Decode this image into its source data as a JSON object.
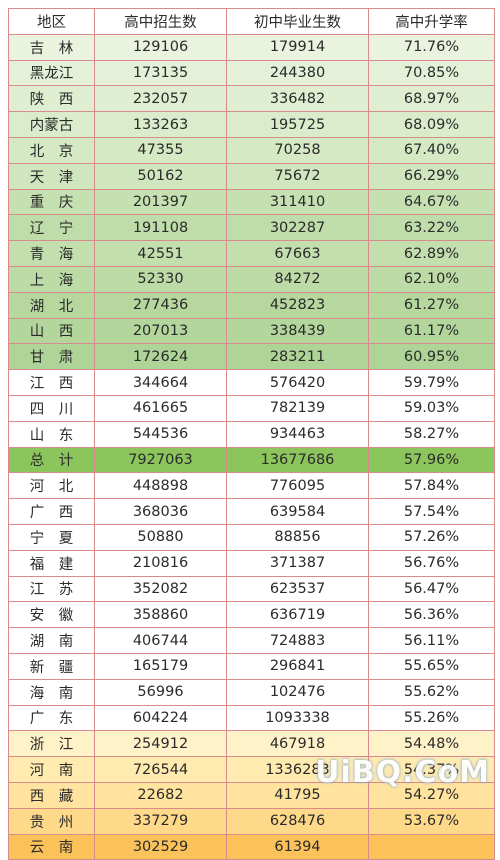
{
  "table": {
    "headers": [
      "地区",
      "高中招生数",
      "初中毕业生数",
      "高中升学率"
    ],
    "rows": [
      {
        "region": "吉　林",
        "enroll": "129106",
        "grads": "179914",
        "rate": "71.76%",
        "bg": "#e9f3de"
      },
      {
        "region": "黑龙江",
        "enroll": "173135",
        "grads": "244380",
        "rate": "70.85%",
        "bg": "#e4f0d7"
      },
      {
        "region": "陕　西",
        "enroll": "232057",
        "grads": "336482",
        "rate": "68.97%",
        "bg": "#dfeed1"
      },
      {
        "region": "内蒙古",
        "enroll": "133263",
        "grads": "195725",
        "rate": "68.09%",
        "bg": "#daeccb"
      },
      {
        "region": "北　京",
        "enroll": "47355",
        "grads": "70258",
        "rate": "67.40%",
        "bg": "#d5e9c4"
      },
      {
        "region": "天　津",
        "enroll": "50162",
        "grads": "75672",
        "rate": "66.29%",
        "bg": "#d0e6be"
      },
      {
        "region": "重　庆",
        "enroll": "201397",
        "grads": "311410",
        "rate": "64.67%",
        "bg": "#c5e0b1"
      },
      {
        "region": "辽　宁",
        "enroll": "191108",
        "grads": "302287",
        "rate": "63.22%",
        "bg": "#bfddaa"
      },
      {
        "region": "青　海",
        "enroll": "42551",
        "grads": "67663",
        "rate": "62.89%",
        "bg": "#c3dfae"
      },
      {
        "region": "上　海",
        "enroll": "52330",
        "grads": "84272",
        "rate": "62.10%",
        "bg": "#bcdba6"
      },
      {
        "region": "湖　北",
        "enroll": "277436",
        "grads": "452823",
        "rate": "61.27%",
        "bg": "#b6d89f"
      },
      {
        "region": "山　西",
        "enroll": "207013",
        "grads": "338439",
        "rate": "61.17%",
        "bg": "#b2d69b"
      },
      {
        "region": "甘　肃",
        "enroll": "172624",
        "grads": "283211",
        "rate": "60.95%",
        "bg": "#aed497"
      },
      {
        "region": "江　西",
        "enroll": "344664",
        "grads": "576420",
        "rate": "59.79%",
        "bg": "#ffffff"
      },
      {
        "region": "四　川",
        "enroll": "461665",
        "grads": "782139",
        "rate": "59.03%",
        "bg": "#ffffff"
      },
      {
        "region": "山　东",
        "enroll": "544536",
        "grads": "934463",
        "rate": "58.27%",
        "bg": "#ffffff"
      },
      {
        "region": "总　计",
        "enroll": "7927063",
        "grads": "13677686",
        "rate": "57.96%",
        "bg": "#8cc55c"
      },
      {
        "region": "河　北",
        "enroll": "448898",
        "grads": "776095",
        "rate": "57.84%",
        "bg": "#ffffff"
      },
      {
        "region": "广　西",
        "enroll": "368036",
        "grads": "639584",
        "rate": "57.54%",
        "bg": "#ffffff"
      },
      {
        "region": "宁　夏",
        "enroll": "50880",
        "grads": "88856",
        "rate": "57.26%",
        "bg": "#ffffff"
      },
      {
        "region": "福　建",
        "enroll": "210816",
        "grads": "371387",
        "rate": "56.76%",
        "bg": "#ffffff"
      },
      {
        "region": "江　苏",
        "enroll": "352082",
        "grads": "623537",
        "rate": "56.47%",
        "bg": "#ffffff"
      },
      {
        "region": "安　徽",
        "enroll": "358860",
        "grads": "636719",
        "rate": "56.36%",
        "bg": "#ffffff"
      },
      {
        "region": "湖　南",
        "enroll": "406744",
        "grads": "724883",
        "rate": "56.11%",
        "bg": "#ffffff"
      },
      {
        "region": "新　疆",
        "enroll": "165179",
        "grads": "296841",
        "rate": "55.65%",
        "bg": "#ffffff"
      },
      {
        "region": "海　南",
        "enroll": "56996",
        "grads": "102476",
        "rate": "55.62%",
        "bg": "#ffffff"
      },
      {
        "region": "广　东",
        "enroll": "604224",
        "grads": "1093338",
        "rate": "55.26%",
        "bg": "#ffffff"
      },
      {
        "region": "浙　江",
        "enroll": "254912",
        "grads": "467918",
        "rate": "54.48%",
        "bg": "#fff1c8"
      },
      {
        "region": "河　南",
        "enroll": "726544",
        "grads": "1336283",
        "rate": "54.37%",
        "bg": "#ffeab0"
      },
      {
        "region": "西　藏",
        "enroll": "22682",
        "grads": "41795",
        "rate": "54.27%",
        "bg": "#ffe39e"
      },
      {
        "region": "贵　州",
        "enroll": "337279",
        "grads": "628476",
        "rate": "53.67%",
        "bg": "#fed98a"
      },
      {
        "region": "云　南",
        "enroll": "302529",
        "grads": "61394",
        "rate": "",
        "bg": "#fbc25a"
      }
    ]
  },
  "watermark": "UiBQ.CoM"
}
